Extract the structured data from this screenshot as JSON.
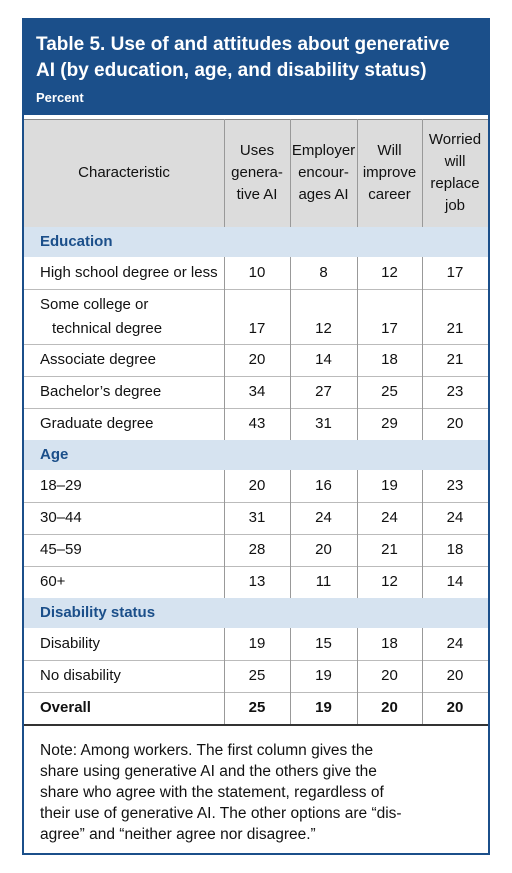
{
  "header": {
    "title_lines": [
      "Table 5. Use of and attitudes about generative",
      "AI (by education, age, and disability status)"
    ],
    "subtitle": "Percent"
  },
  "table": {
    "columns": [
      [
        "Characteristic"
      ],
      [
        "Uses",
        "genera-",
        "tive AI"
      ],
      [
        "Employer",
        "encour-",
        "ages AI"
      ],
      [
        "Will",
        "improve",
        "career"
      ],
      [
        "Worried",
        "will",
        "replace",
        "job"
      ]
    ],
    "sections": [
      {
        "title": "Education",
        "rows": [
          {
            "label": [
              "High school degree or less"
            ],
            "values": [
              10,
              8,
              12,
              17
            ]
          },
          {
            "label": [
              "Some college or",
              "technical degree"
            ],
            "values": [
              17,
              12,
              17,
              21
            ]
          },
          {
            "label": [
              "Associate degree"
            ],
            "values": [
              20,
              14,
              18,
              21
            ]
          },
          {
            "label": [
              "Bachelor’s degree"
            ],
            "values": [
              34,
              27,
              25,
              23
            ]
          },
          {
            "label": [
              "Graduate degree"
            ],
            "values": [
              43,
              31,
              29,
              20
            ]
          }
        ]
      },
      {
        "title": "Age",
        "rows": [
          {
            "label": [
              "18–29"
            ],
            "values": [
              20,
              16,
              19,
              23
            ]
          },
          {
            "label": [
              "30–44"
            ],
            "values": [
              31,
              24,
              24,
              24
            ]
          },
          {
            "label": [
              "45–59"
            ],
            "values": [
              28,
              20,
              21,
              18
            ]
          },
          {
            "label": [
              "60+"
            ],
            "values": [
              13,
              11,
              12,
              14
            ]
          }
        ]
      },
      {
        "title": "Disability status",
        "rows": [
          {
            "label": [
              "Disability"
            ],
            "values": [
              19,
              15,
              18,
              24
            ]
          },
          {
            "label": [
              "No disability"
            ],
            "values": [
              25,
              19,
              20,
              20
            ]
          }
        ]
      }
    ],
    "overall": {
      "label": [
        "Overall"
      ],
      "values": [
        25,
        19,
        20,
        20
      ]
    }
  },
  "note": {
    "lines": [
      "Note: Among workers. The first column gives the",
      "share using generative AI and the others give the",
      "share who agree with the statement, regardless of",
      "their use of generative AI. The other options are “dis-",
      "agree” and “neither agree nor disagree.”"
    ]
  }
}
